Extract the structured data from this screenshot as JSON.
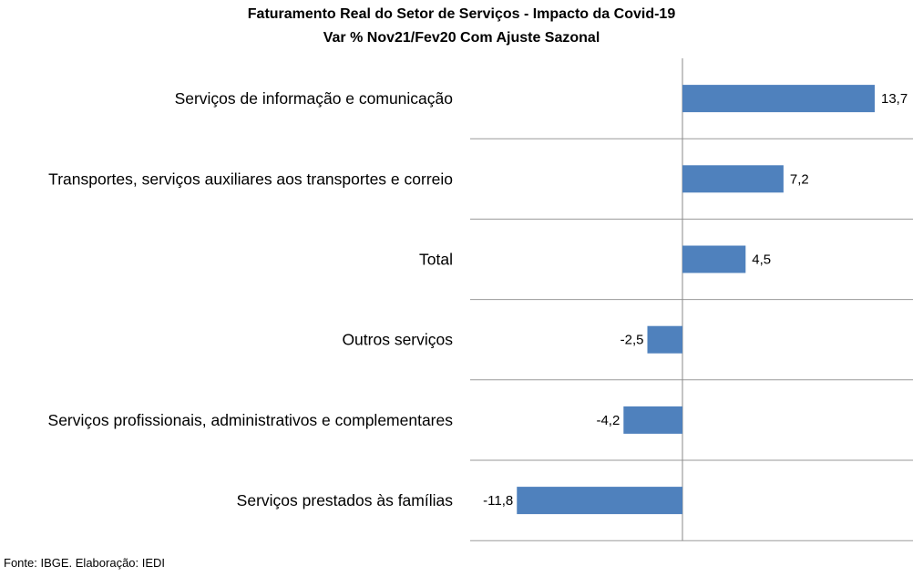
{
  "chart_data": {
    "type": "bar",
    "orientation": "horizontal",
    "title": "Faturamento  Real do Setor de Serviços - Impacto da Covid-19",
    "subtitle": "Var % Nov21/Fev20 Com Ajuste Sazonal",
    "categories": [
      "Serviços de informação e comunicação",
      "Transportes, serviços auxiliares aos transportes e correio",
      "Total",
      "Outros serviços",
      "Serviços profissionais, administrativos e complementares",
      "Serviços prestados às famílias"
    ],
    "values": [
      13.7,
      7.2,
      4.5,
      -2.5,
      -4.2,
      -11.8
    ],
    "value_labels": [
      "13,7",
      "7,2",
      "4,5",
      "-2,5",
      "-4,2",
      "-11,8"
    ],
    "xlim": [
      -15,
      16
    ],
    "bar_color": "#4f81bd",
    "grid": true,
    "legend": "none"
  },
  "source": "Fonte: IBGE. Elaboração: IEDI"
}
